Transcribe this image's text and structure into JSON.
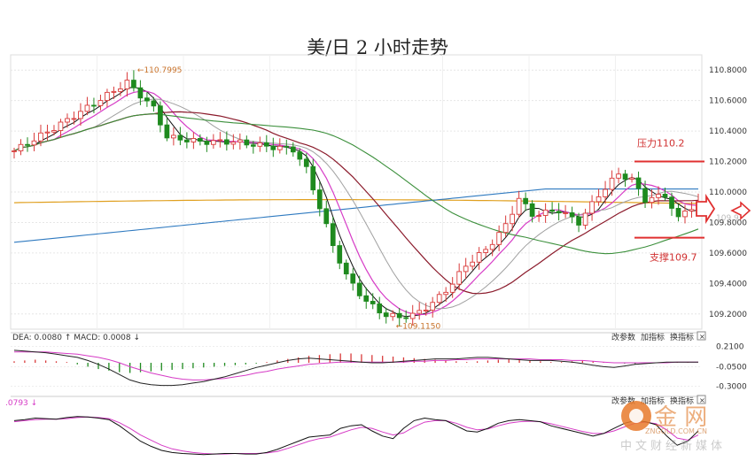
{
  "title": "美/日 2 小时走势",
  "chart_data": [
    {
      "type": "candlestick",
      "title": "美/日 2 小时走势",
      "ylim": [
        109.1,
        110.9
      ],
      "yticks": [
        "110.8000",
        "110.6000",
        "110.4000",
        "110.2000",
        "110.0000",
        "109.8000",
        "109.6000",
        "109.4000",
        "109.2000"
      ],
      "annotations": {
        "high_label": "110.7995",
        "low_label": "109.1150",
        "resistance_label": "压力110.2",
        "resistance_value": 110.2,
        "support_label": "支撑109.7",
        "support_value": 109.7,
        "arrow_label": "109.9"
      },
      "colors": {
        "up": "#d93a3a",
        "down": "#1e8a1e",
        "ma_black": "#111111",
        "ma_magenta": "#d63bc6",
        "ma_gray": "#a0a0a0",
        "ma_darkred": "#8b1a2b",
        "ma_green": "#3b8f3b",
        "ma_blue": "#2f7ac0",
        "ma_orange": "#e0a020",
        "level": "#e03030"
      },
      "candles": []
    },
    {
      "type": "macd",
      "header": "DEA: 0.0080 ↑ MACD: 0.0008 ↓",
      "yticks": [
        "0.2100",
        "-0.0500",
        "-0.3000"
      ],
      "ylim": [
        -0.34,
        0.25
      ],
      "histogram": [
        0.02,
        0.03,
        0.04,
        0.03,
        0.02,
        0.01,
        -0.02,
        -0.05,
        -0.08,
        -0.1,
        -0.12,
        -0.13,
        -0.12,
        -0.11,
        -0.1,
        -0.09,
        -0.08,
        -0.07,
        -0.06,
        -0.05,
        -0.04,
        -0.03,
        -0.02,
        -0.01,
        0.01,
        0.03,
        0.05,
        0.07,
        0.09,
        0.1,
        0.11,
        0.12,
        0.12,
        0.11,
        0.1,
        0.09,
        0.08,
        0.07,
        0.06,
        0.05,
        0.04,
        0.03,
        0.02,
        0.01,
        0.02,
        0.03,
        0.04,
        0.05,
        0.04,
        0.03,
        0.02,
        0.01,
        0.01,
        0.02,
        0.03,
        0.02,
        0.01,
        0.0,
        -0.01,
        -0.02,
        -0.01,
        0.0,
        0.01,
        0.01,
        0.01,
        0.0
      ],
      "dif": [
        0.16,
        0.15,
        0.14,
        0.13,
        0.11,
        0.09,
        0.07,
        0.03,
        -0.02,
        -0.08,
        -0.15,
        -0.22,
        -0.26,
        -0.28,
        -0.29,
        -0.29,
        -0.28,
        -0.26,
        -0.24,
        -0.21,
        -0.18,
        -0.14,
        -0.1,
        -0.06,
        -0.03,
        0.0,
        0.03,
        0.05,
        0.06,
        0.05,
        0.04,
        0.03,
        0.02,
        0.01,
        0.0,
        0.0,
        0.01,
        0.02,
        0.03,
        0.04,
        0.05,
        0.05,
        0.05,
        0.06,
        0.07,
        0.07,
        0.06,
        0.05,
        0.04,
        0.03,
        0.03,
        0.03,
        0.02,
        0.01,
        -0.01,
        -0.03,
        -0.05,
        -0.06,
        -0.04,
        -0.02,
        -0.01,
        0.0,
        0.01,
        0.01,
        0.01,
        0.01
      ],
      "dea": [
        0.14,
        0.14,
        0.14,
        0.14,
        0.13,
        0.12,
        0.11,
        0.09,
        0.07,
        0.04,
        0.0,
        -0.05,
        -0.09,
        -0.13,
        -0.16,
        -0.19,
        -0.21,
        -0.22,
        -0.22,
        -0.21,
        -0.2,
        -0.18,
        -0.16,
        -0.13,
        -0.11,
        -0.08,
        -0.06,
        -0.04,
        -0.02,
        -0.01,
        0.0,
        0.01,
        0.01,
        0.01,
        0.01,
        0.01,
        0.01,
        0.01,
        0.02,
        0.02,
        0.03,
        0.03,
        0.04,
        0.04,
        0.05,
        0.05,
        0.05,
        0.05,
        0.05,
        0.05,
        0.04,
        0.04,
        0.04,
        0.03,
        0.03,
        0.02,
        0.01,
        0.0,
        0.0,
        0.0,
        0.0,
        0.0,
        0.0,
        0.01,
        0.01,
        0.01
      ]
    },
    {
      "type": "kd",
      "header": ".0793 ↓",
      "series": [
        {
          "values": [
            70,
            72,
            75,
            74,
            73,
            76,
            78,
            77,
            75,
            72,
            60,
            45,
            30,
            20,
            12,
            8,
            6,
            5,
            4,
            5,
            6,
            6,
            5,
            5,
            8,
            14,
            22,
            30,
            38,
            40,
            42,
            55,
            60,
            62,
            50,
            40,
            35,
            55,
            70,
            75,
            72,
            70,
            60,
            50,
            48,
            55,
            65,
            70,
            72,
            70,
            68,
            60,
            55,
            50,
            45,
            40,
            45,
            55,
            65,
            70,
            68,
            62,
            40,
            22,
            30,
            50
          ]
        },
        {
          "values": [
            68,
            70,
            72,
            73,
            73,
            74,
            76,
            77,
            76,
            74,
            66,
            55,
            42,
            32,
            22,
            15,
            11,
            8,
            6,
            5,
            5,
            6,
            6,
            6,
            7,
            10,
            16,
            23,
            30,
            35,
            38,
            45,
            52,
            57,
            55,
            48,
            42,
            46,
            58,
            67,
            70,
            70,
            65,
            57,
            52,
            54,
            60,
            65,
            68,
            69,
            68,
            64,
            59,
            54,
            49,
            45,
            45,
            50,
            58,
            65,
            67,
            64,
            52,
            36,
            32,
            42
          ]
        }
      ]
    }
  ],
  "panel_buttons": [
    "改参数",
    "加指标",
    "换指标"
  ],
  "watermark": {
    "brand": "金 网",
    "sub": "中文财经新媒体",
    "url": "ZNGOLD.COM.CN"
  }
}
